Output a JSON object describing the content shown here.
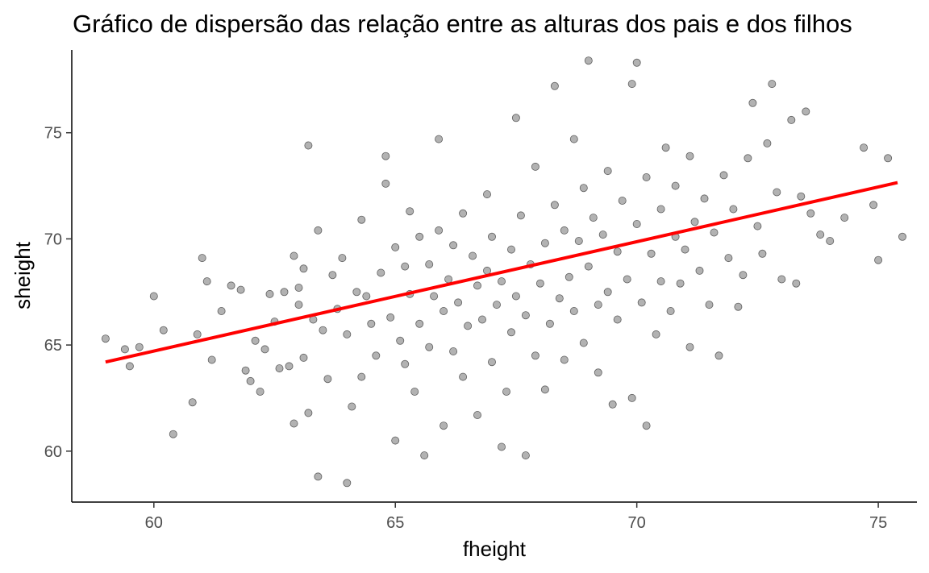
{
  "chart_data": {
    "type": "scatter",
    "title": "Gráfico de dispersão das relação entre as alturas dos pais e dos filhos",
    "xlabel": "fheight",
    "ylabel": "sheight",
    "xlim": [
      58.3,
      75.8
    ],
    "ylim": [
      57.6,
      78.9
    ],
    "x_ticks": [
      60,
      65,
      70,
      75
    ],
    "y_ticks": [
      60,
      65,
      70,
      75
    ],
    "grid": false,
    "point_color": "#000000",
    "point_opacity": 0.3,
    "fit_line": {
      "color": "#ff0000",
      "x": [
        59.0,
        75.4
      ],
      "y": [
        64.2,
        72.65
      ]
    },
    "series": [
      {
        "points": [
          [
            59.0,
            65.3
          ],
          [
            59.4,
            64.8
          ],
          [
            59.5,
            64.0
          ],
          [
            59.7,
            64.9
          ],
          [
            60.0,
            67.3
          ],
          [
            60.2,
            65.7
          ],
          [
            60.4,
            60.8
          ],
          [
            60.8,
            62.3
          ],
          [
            60.9,
            65.5
          ],
          [
            61.0,
            69.1
          ],
          [
            61.1,
            68.0
          ],
          [
            61.2,
            64.3
          ],
          [
            61.4,
            66.6
          ],
          [
            61.6,
            67.8
          ],
          [
            61.8,
            67.6
          ],
          [
            61.9,
            63.8
          ],
          [
            62.0,
            63.3
          ],
          [
            62.1,
            65.2
          ],
          [
            62.2,
            62.8
          ],
          [
            62.3,
            64.8
          ],
          [
            62.4,
            67.4
          ],
          [
            62.5,
            66.1
          ],
          [
            62.6,
            63.9
          ],
          [
            62.7,
            67.5
          ],
          [
            62.8,
            64.0
          ],
          [
            62.9,
            61.3
          ],
          [
            62.9,
            69.2
          ],
          [
            63.0,
            67.7
          ],
          [
            63.0,
            66.9
          ],
          [
            63.1,
            68.6
          ],
          [
            63.1,
            64.4
          ],
          [
            63.2,
            74.4
          ],
          [
            63.2,
            61.8
          ],
          [
            63.3,
            66.2
          ],
          [
            63.4,
            70.4
          ],
          [
            63.4,
            58.8
          ],
          [
            63.5,
            65.7
          ],
          [
            63.6,
            63.4
          ],
          [
            63.7,
            68.3
          ],
          [
            63.8,
            66.7
          ],
          [
            63.9,
            69.1
          ],
          [
            64.0,
            58.5
          ],
          [
            64.0,
            65.5
          ],
          [
            64.1,
            62.1
          ],
          [
            64.2,
            67.5
          ],
          [
            64.3,
            70.9
          ],
          [
            64.3,
            63.5
          ],
          [
            64.4,
            67.3
          ],
          [
            64.5,
            66.0
          ],
          [
            64.6,
            64.5
          ],
          [
            64.7,
            68.4
          ],
          [
            64.8,
            73.9
          ],
          [
            64.8,
            72.6
          ],
          [
            64.9,
            66.3
          ],
          [
            65.0,
            69.6
          ],
          [
            65.0,
            60.5
          ],
          [
            65.1,
            65.2
          ],
          [
            65.2,
            68.7
          ],
          [
            65.2,
            64.1
          ],
          [
            65.3,
            71.3
          ],
          [
            65.3,
            67.4
          ],
          [
            65.4,
            62.8
          ],
          [
            65.5,
            70.1
          ],
          [
            65.5,
            66.0
          ],
          [
            65.6,
            59.8
          ],
          [
            65.7,
            68.8
          ],
          [
            65.7,
            64.9
          ],
          [
            65.8,
            67.3
          ],
          [
            65.9,
            74.7
          ],
          [
            65.9,
            70.4
          ],
          [
            66.0,
            61.2
          ],
          [
            66.0,
            66.6
          ],
          [
            66.1,
            68.1
          ],
          [
            66.2,
            64.7
          ],
          [
            66.2,
            69.7
          ],
          [
            66.3,
            67.0
          ],
          [
            66.4,
            63.5
          ],
          [
            66.4,
            71.2
          ],
          [
            66.5,
            65.9
          ],
          [
            66.6,
            69.2
          ],
          [
            66.7,
            61.7
          ],
          [
            66.7,
            67.8
          ],
          [
            66.8,
            66.2
          ],
          [
            66.9,
            72.1
          ],
          [
            66.9,
            68.5
          ],
          [
            67.0,
            64.2
          ],
          [
            67.0,
            70.1
          ],
          [
            67.1,
            66.9
          ],
          [
            67.2,
            60.2
          ],
          [
            67.2,
            68.0
          ],
          [
            67.3,
            62.8
          ],
          [
            67.4,
            69.5
          ],
          [
            67.4,
            65.6
          ],
          [
            67.5,
            75.7
          ],
          [
            67.5,
            67.3
          ],
          [
            67.6,
            71.1
          ],
          [
            67.7,
            59.8
          ],
          [
            67.7,
            66.4
          ],
          [
            67.8,
            68.8
          ],
          [
            67.9,
            64.5
          ],
          [
            67.9,
            73.4
          ],
          [
            68.0,
            67.9
          ],
          [
            68.1,
            62.9
          ],
          [
            68.1,
            69.8
          ],
          [
            68.2,
            66.0
          ],
          [
            68.3,
            77.2
          ],
          [
            68.3,
            71.6
          ],
          [
            68.4,
            67.2
          ],
          [
            68.5,
            64.3
          ],
          [
            68.5,
            70.4
          ],
          [
            68.6,
            68.2
          ],
          [
            68.7,
            74.7
          ],
          [
            68.7,
            66.6
          ],
          [
            68.8,
            69.9
          ],
          [
            68.9,
            72.4
          ],
          [
            68.9,
            65.1
          ],
          [
            69.0,
            78.4
          ],
          [
            69.0,
            68.7
          ],
          [
            69.1,
            71.0
          ],
          [
            69.2,
            66.9
          ],
          [
            69.2,
            63.7
          ],
          [
            69.3,
            70.2
          ],
          [
            69.4,
            67.5
          ],
          [
            69.4,
            73.2
          ],
          [
            69.5,
            62.2
          ],
          [
            69.6,
            69.4
          ],
          [
            69.6,
            66.2
          ],
          [
            69.7,
            71.8
          ],
          [
            69.8,
            68.1
          ],
          [
            69.9,
            62.5
          ],
          [
            69.9,
            77.3
          ],
          [
            70.0,
            78.3
          ],
          [
            70.0,
            70.7
          ],
          [
            70.1,
            67.0
          ],
          [
            70.2,
            61.2
          ],
          [
            70.2,
            72.9
          ],
          [
            70.3,
            69.3
          ],
          [
            70.4,
            65.5
          ],
          [
            70.5,
            71.4
          ],
          [
            70.5,
            68.0
          ],
          [
            70.6,
            74.3
          ],
          [
            70.7,
            66.6
          ],
          [
            70.8,
            70.1
          ],
          [
            70.8,
            72.5
          ],
          [
            70.9,
            67.9
          ],
          [
            71.0,
            69.5
          ],
          [
            71.1,
            73.9
          ],
          [
            71.1,
            64.9
          ],
          [
            71.2,
            70.8
          ],
          [
            71.3,
            68.5
          ],
          [
            71.4,
            71.9
          ],
          [
            71.5,
            66.9
          ],
          [
            71.6,
            70.3
          ],
          [
            71.7,
            64.5
          ],
          [
            71.8,
            73.0
          ],
          [
            71.9,
            69.1
          ],
          [
            72.0,
            71.4
          ],
          [
            72.1,
            66.8
          ],
          [
            72.2,
            68.3
          ],
          [
            72.3,
            73.8
          ],
          [
            72.4,
            76.4
          ],
          [
            72.5,
            70.6
          ],
          [
            72.6,
            69.3
          ],
          [
            72.7,
            74.5
          ],
          [
            72.8,
            77.3
          ],
          [
            72.9,
            72.2
          ],
          [
            73.0,
            68.1
          ],
          [
            73.2,
            75.6
          ],
          [
            73.3,
            67.9
          ],
          [
            73.4,
            72.0
          ],
          [
            73.5,
            76.0
          ],
          [
            73.6,
            71.2
          ],
          [
            73.8,
            70.2
          ],
          [
            74.0,
            69.9
          ],
          [
            74.3,
            71.0
          ],
          [
            74.7,
            74.3
          ],
          [
            74.9,
            71.6
          ],
          [
            75.0,
            69.0
          ],
          [
            75.2,
            73.8
          ],
          [
            75.5,
            70.1
          ]
        ]
      }
    ]
  }
}
